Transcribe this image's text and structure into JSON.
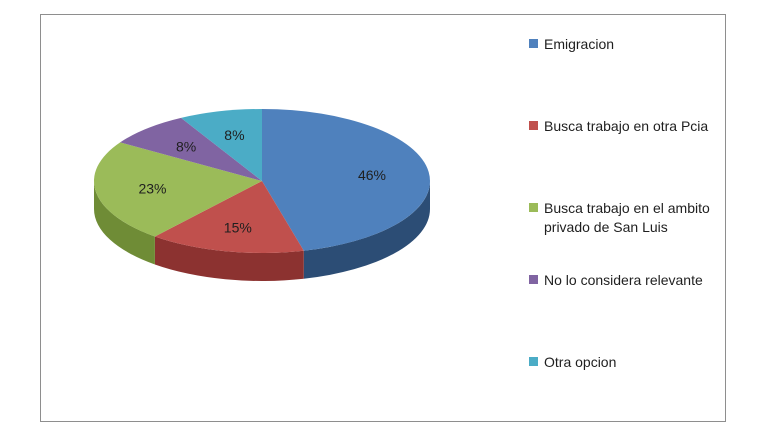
{
  "chart_data": {
    "type": "pie",
    "three_d": true,
    "legend_position": "right",
    "slices": [
      {
        "label": "Emigracion",
        "value": 46,
        "value_label": "46%",
        "color": "#4f81bd",
        "side_color": "#2c4d75"
      },
      {
        "label": "Busca trabajo en otra Pcia",
        "value": 15,
        "value_label": "15%",
        "color": "#c0504d",
        "side_color": "#8c3230"
      },
      {
        "label": "Busca trabajo en el ambito privado de San Luis",
        "value": 23,
        "value_label": "23%",
        "color": "#9bbb59",
        "side_color": "#6f8c36"
      },
      {
        "label": "No lo considera relevante",
        "value": 8,
        "value_label": "8%",
        "color": "#8064a2",
        "side_color": "#5a4478"
      },
      {
        "label": "Otra opcion",
        "value": 8,
        "value_label": "8%",
        "color": "#4bacc6",
        "side_color": "#2e7f96"
      }
    ]
  }
}
